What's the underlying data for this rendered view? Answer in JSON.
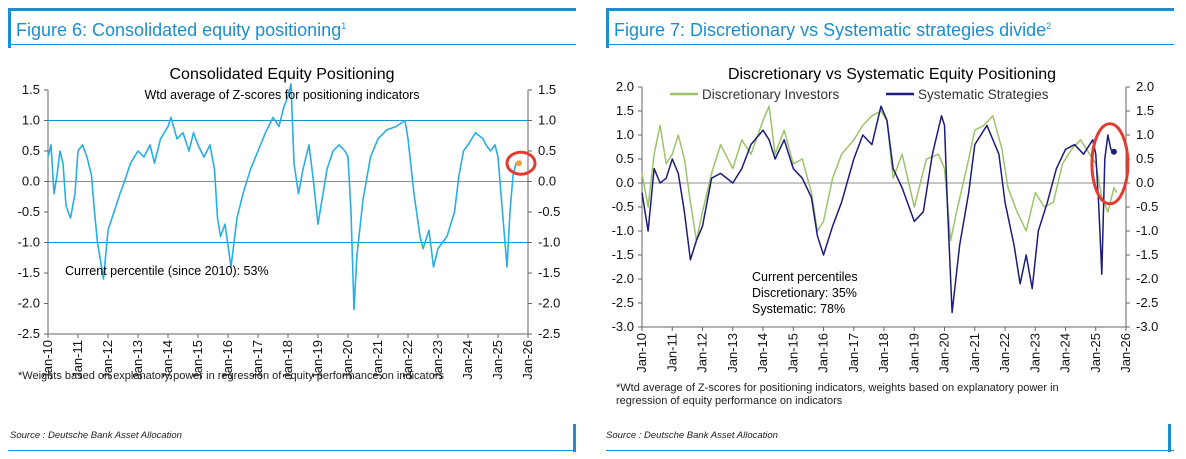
{
  "left": {
    "figure_label": "Figure 6: Consolidated equity positioning",
    "figure_sup": "1",
    "footnote": "*Weights based on explanatory power in regression of equity performance on indicators",
    "source": "Source : Deutsche Bank Asset Allocation"
  },
  "right": {
    "figure_label": "Figure 7: Discretionary vs Systematic strategies divide",
    "figure_sup": "2",
    "footnote_line1": "*Wtd average of Z-scores for positioning indicators, weights based on explanatory power in",
    "footnote_line2": "regression of equity performance on indicators",
    "source": "Source : Deutsche Bank Asset Allocation"
  },
  "colors": {
    "accent": "#1a8fd0",
    "consolidated": "#29aee3",
    "discretionary": "#9dc36a",
    "systematic": "#1c1c7a",
    "highlight": "#e23b32"
  },
  "chart_data": [
    {
      "type": "line",
      "title": "Consolidated Equity Positioning",
      "subtitle": "Wtd average of Z-scores for positioning indicators",
      "annotation": "Current percentile (since 2010): 53%",
      "categories": [
        "Jan-10",
        "Jan-11",
        "Jan-12",
        "Jan-13",
        "Jan-14",
        "Jan-15",
        "Jan-16",
        "Jan-17",
        "Jan-18",
        "Jan-19",
        "Jan-20",
        "Jan-21",
        "Jan-22",
        "Jan-23",
        "Jan-24",
        "Jan-25",
        "Jan-26"
      ],
      "ylim": [
        -2.5,
        1.5
      ],
      "yticks": [
        "1.5",
        "1.0",
        "0.5",
        "0.0",
        "-0.5",
        "-1.0",
        "-1.5",
        "-2.0",
        "-2.5"
      ],
      "y2ticks": [
        "1.5",
        "1.0",
        "0.5",
        "0.0",
        "-0.5",
        "-1.0",
        "-1.5",
        "-2.0",
        "-2.5"
      ],
      "reference_lines": [
        1.0,
        -1.0
      ],
      "series": [
        {
          "name": "Consolidated Equity Positioning",
          "x": [
            2010.0,
            2010.1,
            2010.2,
            2010.3,
            2010.4,
            2010.5,
            2010.6,
            2010.75,
            2010.9,
            2011.0,
            2011.15,
            2011.3,
            2011.45,
            2011.55,
            2011.65,
            2011.75,
            2011.85,
            2012.0,
            2012.2,
            2012.4,
            2012.55,
            2012.75,
            2013.0,
            2013.2,
            2013.4,
            2013.55,
            2013.75,
            2014.0,
            2014.1,
            2014.3,
            2014.5,
            2014.7,
            2014.85,
            2015.0,
            2015.2,
            2015.4,
            2015.55,
            2015.65,
            2015.75,
            2015.9,
            2016.1,
            2016.3,
            2016.5,
            2016.75,
            2017.0,
            2017.25,
            2017.5,
            2017.7,
            2017.85,
            2018.0,
            2018.1,
            2018.2,
            2018.35,
            2018.5,
            2018.7,
            2018.85,
            2019.0,
            2019.1,
            2019.3,
            2019.5,
            2019.7,
            2019.9,
            2020.0,
            2020.1,
            2020.2,
            2020.3,
            2020.5,
            2020.75,
            2021.0,
            2021.3,
            2021.6,
            2021.9,
            2022.0,
            2022.2,
            2022.4,
            2022.5,
            2022.7,
            2022.85,
            2023.0,
            2023.3,
            2023.55,
            2023.7,
            2023.85,
            2024.0,
            2024.25,
            2024.5,
            2024.6,
            2024.75,
            2024.9,
            2025.0,
            2025.1,
            2025.2,
            2025.3,
            2025.4,
            2025.5,
            2025.6,
            2025.7
          ],
          "values": [
            0.4,
            0.6,
            -0.2,
            0.1,
            0.5,
            0.3,
            -0.4,
            -0.6,
            -0.2,
            0.5,
            0.6,
            0.4,
            0.1,
            -0.5,
            -1.0,
            -1.3,
            -1.6,
            -0.8,
            -0.5,
            -0.2,
            0.0,
            0.3,
            0.5,
            0.4,
            0.6,
            0.3,
            0.7,
            0.9,
            1.05,
            0.7,
            0.8,
            0.5,
            0.8,
            0.6,
            0.4,
            0.6,
            0.2,
            -0.6,
            -0.9,
            -0.7,
            -1.4,
            -0.6,
            -0.2,
            0.2,
            0.5,
            0.8,
            1.05,
            0.9,
            1.2,
            1.4,
            1.6,
            0.3,
            -0.2,
            0.2,
            0.6,
            0.0,
            -0.7,
            -0.4,
            0.2,
            0.5,
            0.6,
            0.5,
            0.4,
            -0.5,
            -2.1,
            -1.2,
            -0.3,
            0.4,
            0.7,
            0.85,
            0.9,
            1.0,
            0.7,
            -0.2,
            -0.9,
            -1.1,
            -0.8,
            -1.4,
            -1.1,
            -0.9,
            -0.5,
            0.1,
            0.5,
            0.6,
            0.8,
            0.7,
            0.6,
            0.5,
            0.6,
            0.4,
            -0.2,
            -0.8,
            -1.4,
            -0.5,
            0.1,
            0.3,
            0.3
          ]
        }
      ]
    },
    {
      "type": "line",
      "title": "Discretionary  vs Systematic Equity Positioning",
      "annotation_lines": [
        "Current percentiles",
        "Discretionary: 35%",
        "Systematic: 78%"
      ],
      "categories": [
        "Jan-10",
        "Jan-11",
        "Jan-12",
        "Jan-13",
        "Jan-14",
        "Jan-15",
        "Jan-16",
        "Jan-17",
        "Jan-18",
        "Jan-19",
        "Jan-20",
        "Jan-21",
        "Jan-22",
        "Jan-23",
        "Jan-24",
        "Jan-25",
        "Jan-26"
      ],
      "ylim": [
        -3.0,
        2.0
      ],
      "yticks": [
        "2.0",
        "1.5",
        "1.0",
        "0.5",
        "0.0",
        "-0.5",
        "-1.0",
        "-1.5",
        "-2.0",
        "-2.5",
        "-3.0"
      ],
      "y2ticks": [
        "2.0",
        "1.5",
        "1.0",
        "0.5",
        "0.0",
        "-0.5",
        "-1.0",
        "-1.5",
        "-2.0",
        "-2.5",
        "-3.0"
      ],
      "series": [
        {
          "name": "Discretionary Investors",
          "x": [
            2010.0,
            2010.2,
            2010.4,
            2010.6,
            2010.8,
            2011.0,
            2011.2,
            2011.4,
            2011.6,
            2011.8,
            2012.0,
            2012.3,
            2012.6,
            2013.0,
            2013.3,
            2013.6,
            2014.0,
            2014.2,
            2014.4,
            2014.7,
            2015.0,
            2015.3,
            2015.6,
            2015.8,
            2016.0,
            2016.3,
            2016.6,
            2017.0,
            2017.3,
            2017.6,
            2017.9,
            2018.1,
            2018.3,
            2018.6,
            2019.0,
            2019.4,
            2019.8,
            2020.0,
            2020.2,
            2020.4,
            2020.8,
            2021.0,
            2021.3,
            2021.6,
            2021.9,
            2022.1,
            2022.4,
            2022.7,
            2023.0,
            2023.3,
            2023.6,
            2023.9,
            2024.2,
            2024.5,
            2024.8,
            2025.0,
            2025.2,
            2025.4,
            2025.6,
            2025.7
          ],
          "values": [
            0.2,
            -0.5,
            0.6,
            1.2,
            0.4,
            0.6,
            1.0,
            0.5,
            -0.4,
            -1.2,
            -0.6,
            0.2,
            0.8,
            0.3,
            0.9,
            0.6,
            1.3,
            1.6,
            0.6,
            1.1,
            0.4,
            0.5,
            -0.2,
            -1.0,
            -0.8,
            0.1,
            0.6,
            0.9,
            1.2,
            1.4,
            1.5,
            1.3,
            0.1,
            0.6,
            -0.5,
            0.5,
            0.6,
            0.3,
            -1.2,
            -0.6,
            0.5,
            1.1,
            1.2,
            1.4,
            0.7,
            -0.1,
            -0.6,
            -1.0,
            -0.2,
            -0.5,
            -0.4,
            0.4,
            0.7,
            0.9,
            0.6,
            0.4,
            -0.3,
            -0.6,
            -0.1,
            -0.2
          ]
        },
        {
          "name": "Systematic Strategies",
          "x": [
            2010.0,
            2010.2,
            2010.4,
            2010.6,
            2010.8,
            2011.0,
            2011.2,
            2011.4,
            2011.6,
            2011.8,
            2012.0,
            2012.3,
            2012.6,
            2013.0,
            2013.3,
            2013.6,
            2014.0,
            2014.2,
            2014.4,
            2014.7,
            2015.0,
            2015.3,
            2015.6,
            2015.8,
            2016.0,
            2016.3,
            2016.6,
            2017.0,
            2017.3,
            2017.6,
            2017.9,
            2018.1,
            2018.3,
            2018.6,
            2019.0,
            2019.3,
            2019.6,
            2019.9,
            2020.0,
            2020.1,
            2020.25,
            2020.5,
            2020.8,
            2021.0,
            2021.4,
            2021.8,
            2022.0,
            2022.3,
            2022.5,
            2022.7,
            2022.9,
            2023.1,
            2023.4,
            2023.7,
            2024.0,
            2024.3,
            2024.6,
            2024.9,
            2025.0,
            2025.1,
            2025.2,
            2025.3,
            2025.4,
            2025.5,
            2025.6
          ],
          "values": [
            -0.2,
            -1.0,
            0.3,
            0.0,
            0.1,
            0.5,
            0.2,
            -0.6,
            -1.6,
            -1.2,
            -0.9,
            0.1,
            0.2,
            0.0,
            0.3,
            0.8,
            1.1,
            0.9,
            0.5,
            0.9,
            0.3,
            0.1,
            -0.3,
            -1.1,
            -1.5,
            -0.9,
            -0.4,
            0.5,
            1.0,
            0.8,
            1.6,
            1.3,
            0.3,
            -0.1,
            -0.8,
            -0.6,
            0.6,
            1.4,
            1.2,
            -0.5,
            -2.7,
            -1.3,
            -0.2,
            0.8,
            1.2,
            0.6,
            -0.4,
            -1.3,
            -2.1,
            -1.5,
            -2.2,
            -1.0,
            -0.4,
            0.3,
            0.7,
            0.8,
            0.6,
            0.9,
            0.6,
            -0.5,
            -1.9,
            0.5,
            1.0,
            0.7,
            0.65
          ]
        }
      ]
    }
  ]
}
